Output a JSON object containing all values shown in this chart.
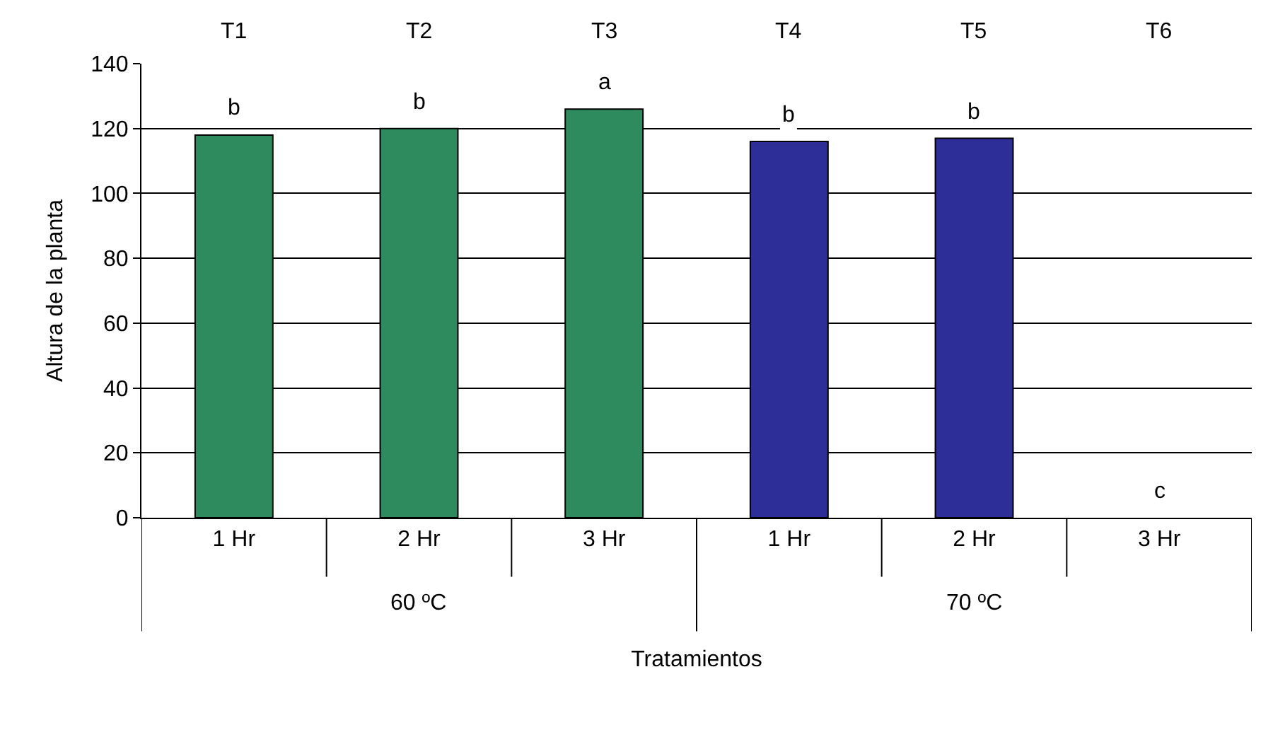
{
  "chart_data": {
    "type": "bar",
    "xlabel": "Tratamientos",
    "ylabel": "Altura de la planta",
    "categories": [
      "1 Hr",
      "2 Hr",
      "3 Hr",
      "1 Hr",
      "2 Hr",
      "3 Hr"
    ],
    "values": [
      118,
      120,
      126,
      116,
      117,
      0
    ],
    "colors": [
      "#2e8b5e",
      "#2e8b5e",
      "#2e8b5e",
      "#2e2e99",
      "#2e2e99",
      "#2e2e99"
    ],
    "value_labels": [
      "b",
      "b",
      "a",
      "b",
      "b",
      "c"
    ],
    "annotations": [
      "T1",
      "T2",
      "T3",
      "T4",
      "T5",
      "T6",
      "60 ºC",
      "70 ºC"
    ],
    "ylim": [
      0,
      140
    ],
    "yticks": [
      0,
      20,
      40,
      60,
      80,
      100,
      120,
      140
    ],
    "grid": "y",
    "legend": false
  }
}
